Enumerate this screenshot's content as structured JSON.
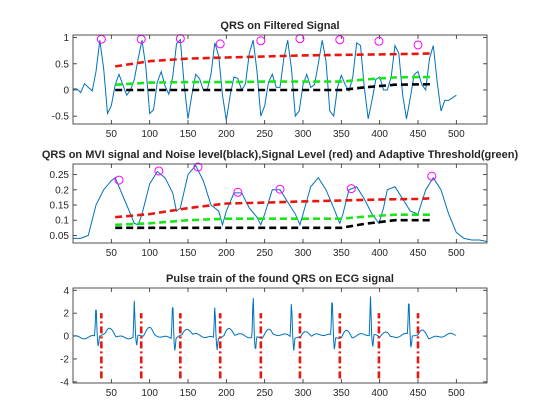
{
  "chart_data": [
    {
      "type": "line",
      "title": "QRS on Filtered Signal",
      "xlabel": "",
      "ylabel": "",
      "xlim": [
        0,
        540
      ],
      "ylim": [
        -0.65,
        1.05
      ],
      "x_ticks": [
        50,
        100,
        150,
        200,
        250,
        300,
        350,
        400,
        450,
        500
      ],
      "y_ticks": [
        -0.5,
        0,
        0.5,
        1
      ],
      "grid": false,
      "legend": "none",
      "series": [
        {
          "role": "signal",
          "color": "#0072BD",
          "style": "solid",
          "x": [
            0,
            5,
            10,
            15,
            20,
            25,
            30,
            35,
            40,
            45,
            50,
            55,
            60,
            65,
            70,
            75,
            80,
            85,
            90,
            95,
            100,
            105,
            110,
            115,
            120,
            125,
            130,
            135,
            140,
            145,
            150,
            155,
            160,
            165,
            170,
            175,
            180,
            185,
            190,
            195,
            200,
            205,
            210,
            215,
            220,
            225,
            230,
            235,
            240,
            245,
            250,
            255,
            260,
            265,
            270,
            275,
            280,
            285,
            290,
            295,
            300,
            305,
            310,
            315,
            320,
            325,
            330,
            335,
            340,
            345,
            350,
            355,
            360,
            365,
            370,
            375,
            380,
            385,
            390,
            395,
            400,
            405,
            410,
            415,
            420,
            425,
            430,
            435,
            440,
            445,
            450,
            455,
            460,
            465,
            470,
            475,
            480,
            485,
            490,
            495,
            500
          ],
          "y": [
            0.02,
            0.02,
            -0.05,
            0.12,
            0.05,
            -0.02,
            0.35,
            0.95,
            0.4,
            -0.45,
            -0.3,
            0.1,
            0.3,
            0.1,
            -0.1,
            0.0,
            0.2,
            0.6,
            0.95,
            0.45,
            -0.45,
            -0.38,
            0.15,
            0.35,
            0.08,
            -0.08,
            0.25,
            0.88,
            0.96,
            0.1,
            -0.55,
            -0.1,
            0.3,
            0.22,
            0.0,
            0.0,
            0.3,
            0.9,
            0.65,
            -0.1,
            -0.58,
            -0.1,
            0.25,
            0.22,
            0.0,
            0.12,
            0.7,
            0.95,
            0.35,
            -0.5,
            -0.3,
            0.15,
            0.3,
            0.05,
            0.05,
            0.6,
            0.95,
            0.4,
            -0.5,
            -0.4,
            0.1,
            0.3,
            0.05,
            0.1,
            0.5,
            0.95,
            0.55,
            -0.4,
            -0.5,
            0.05,
            0.28,
            0.1,
            -0.02,
            0.25,
            0.9,
            0.85,
            0.05,
            -0.55,
            -0.2,
            0.2,
            0.25,
            0.0,
            0.0,
            0.25,
            0.85,
            0.7,
            -0.1,
            -0.55,
            -0.15,
            0.3,
            0.35,
            0.1,
            0.0,
            0.6,
            0.85,
            0.15,
            -0.4,
            -0.2,
            -0.2,
            -0.15,
            -0.1
          ]
        },
        {
          "role": "signal-level",
          "color": "#E6170F",
          "style": "dashed",
          "x": [
            55,
            100,
            150,
            200,
            250,
            300,
            350,
            400,
            450,
            470
          ],
          "y": [
            0.45,
            0.55,
            0.6,
            0.62,
            0.64,
            0.66,
            0.67,
            0.68,
            0.69,
            0.7
          ]
        },
        {
          "role": "adaptive-threshold",
          "color": "#19E619",
          "style": "dashed",
          "x": [
            55,
            100,
            150,
            200,
            250,
            300,
            350,
            380,
            420,
            470
          ],
          "y": [
            0.1,
            0.14,
            0.15,
            0.15,
            0.16,
            0.16,
            0.16,
            0.2,
            0.24,
            0.25
          ]
        },
        {
          "role": "noise-level",
          "color": "#000000",
          "style": "dashed",
          "x": [
            55,
            100,
            150,
            200,
            250,
            300,
            350,
            380,
            420,
            470
          ],
          "y": [
            0.0,
            0.0,
            0.0,
            0.0,
            0.0,
            0.0,
            0.0,
            0.05,
            0.1,
            0.11
          ]
        },
        {
          "role": "qrs-markers",
          "color": "#FF00FF",
          "style": "circle",
          "x": [
            37,
            89,
            140,
            192,
            245,
            296,
            348,
            399,
            450
          ],
          "y": [
            0.97,
            0.97,
            0.98,
            0.88,
            0.94,
            0.98,
            0.96,
            0.93,
            0.86
          ]
        }
      ]
    },
    {
      "type": "line",
      "title": "QRS on MVI signal and Noise level(black),Signal Level (red) and Adaptive Threshold(green)",
      "xlabel": "",
      "ylabel": "",
      "xlim": [
        0,
        540
      ],
      "ylim": [
        0.025,
        0.285
      ],
      "x_ticks": [
        50,
        100,
        150,
        200,
        250,
        300,
        350,
        400,
        450,
        500
      ],
      "y_ticks": [
        0.05,
        0.1,
        0.15,
        0.2,
        0.25
      ],
      "grid": false,
      "legend": "none",
      "series": [
        {
          "role": "mvi-signal",
          "color": "#0072BD",
          "style": "solid",
          "x": [
            0,
            10,
            20,
            30,
            40,
            50,
            55,
            60,
            70,
            80,
            85,
            90,
            100,
            110,
            120,
            130,
            135,
            140,
            150,
            160,
            170,
            180,
            190,
            195,
            200,
            210,
            220,
            230,
            240,
            245,
            250,
            260,
            270,
            280,
            290,
            296,
            300,
            310,
            320,
            330,
            340,
            348,
            352,
            360,
            370,
            380,
            390,
            399,
            405,
            410,
            420,
            430,
            440,
            450,
            460,
            470,
            480,
            490,
            500,
            510,
            520,
            530,
            540
          ],
          "y": [
            0.04,
            0.04,
            0.05,
            0.15,
            0.2,
            0.23,
            0.24,
            0.21,
            0.15,
            0.09,
            0.085,
            0.12,
            0.22,
            0.26,
            0.24,
            0.19,
            0.13,
            0.14,
            0.25,
            0.28,
            0.23,
            0.15,
            0.13,
            0.085,
            0.13,
            0.19,
            0.19,
            0.14,
            0.11,
            0.085,
            0.12,
            0.2,
            0.2,
            0.16,
            0.12,
            0.085,
            0.12,
            0.21,
            0.24,
            0.2,
            0.14,
            0.09,
            0.12,
            0.2,
            0.21,
            0.17,
            0.12,
            0.09,
            0.14,
            0.2,
            0.21,
            0.17,
            0.13,
            0.12,
            0.2,
            0.24,
            0.2,
            0.12,
            0.06,
            0.04,
            0.035,
            0.035,
            0.03
          ]
        },
        {
          "role": "signal-level",
          "color": "#E6170F",
          "style": "dashed",
          "x": [
            55,
            100,
            150,
            200,
            250,
            300,
            350,
            400,
            450,
            470
          ],
          "y": [
            0.11,
            0.12,
            0.14,
            0.155,
            0.158,
            0.162,
            0.165,
            0.168,
            0.17,
            0.172
          ]
        },
        {
          "role": "adaptive-threshold",
          "color": "#19E619",
          "style": "dashed",
          "x": [
            55,
            100,
            150,
            200,
            250,
            300,
            350,
            380,
            420,
            470
          ],
          "y": [
            0.085,
            0.09,
            0.1,
            0.105,
            0.105,
            0.105,
            0.105,
            0.112,
            0.118,
            0.118
          ]
        },
        {
          "role": "noise-level",
          "color": "#000000",
          "style": "dashed",
          "x": [
            55,
            100,
            150,
            200,
            250,
            300,
            350,
            380,
            420,
            470
          ],
          "y": [
            0.075,
            0.075,
            0.075,
            0.075,
            0.075,
            0.075,
            0.075,
            0.088,
            0.1,
            0.1
          ]
        },
        {
          "role": "qrs-markers",
          "color": "#FF00FF",
          "style": "circle",
          "x": [
            60,
            112,
            163,
            215,
            270,
            363,
            468
          ],
          "y": [
            0.232,
            0.262,
            0.275,
            0.192,
            0.202,
            0.204,
            0.245
          ]
        }
      ]
    },
    {
      "type": "line",
      "title": "Pulse train of the found QRS on ECG signal",
      "xlabel": "",
      "ylabel": "",
      "xlim": [
        0,
        540
      ],
      "ylim": [
        -4.1,
        4.2
      ],
      "x_ticks": [
        50,
        100,
        150,
        200,
        250,
        300,
        350,
        400,
        450,
        500
      ],
      "y_ticks": [
        -4,
        -2,
        0,
        2,
        4
      ],
      "grid": false,
      "legend": "none",
      "series": [
        {
          "role": "ecg",
          "color": "#0072BD",
          "style": "solid",
          "beats_x": [
            30,
            80,
            130,
            185,
            235,
            285,
            338,
            388,
            438
          ],
          "beats_peak": [
            3.0,
            3.1,
            3.6,
            3.0,
            3.9,
            3.3,
            3.7,
            3.4,
            3.5
          ],
          "beats_trough": [
            -1.0,
            -1.0,
            -1.2,
            -1.0,
            -1.4,
            -1.1,
            -1.3,
            -1.2,
            -1.2
          ],
          "xlim": [
            0,
            500
          ]
        },
        {
          "role": "qrs-pulses",
          "color": "#E6170F",
          "style": "dashdot",
          "x": [
            37,
            89,
            140,
            192,
            245,
            296,
            348,
            399,
            450
          ],
          "y_low": -3.7,
          "y_high": 2.0
        }
      ]
    }
  ]
}
